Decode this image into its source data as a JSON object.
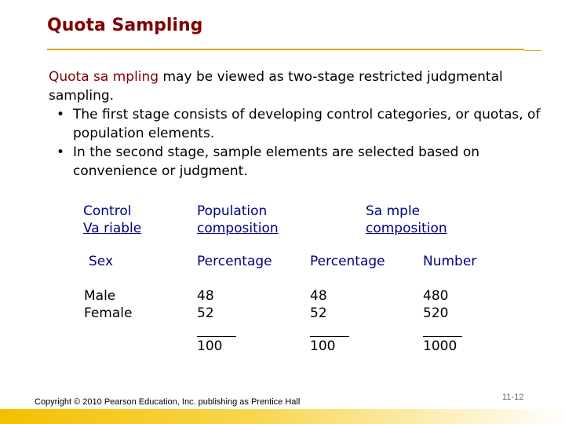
{
  "slide": {
    "title": "Quota Sampling",
    "intro_term": "Quota sa mpling",
    "intro_rest": " may be viewed as two-stage restricted judgmental sampling.",
    "bullets": [
      "The first stage consists of developing control categories, or quotas, of population elements.",
      "In the second stage, sample elements are selected based on convenience or judgment."
    ],
    "bullet_glyph": "•"
  },
  "table": {
    "headers": {
      "control_variable": [
        "Control",
        "Va riable"
      ],
      "population": [
        "Population",
        "composition"
      ],
      "sample": [
        "Sa mple",
        "composition"
      ]
    },
    "subheaders": {
      "variable": "Sex",
      "population_pct": "Percentage",
      "sample_pct": "Percentage",
      "sample_num": "Number"
    },
    "rows": {
      "labels": [
        "Male",
        "Female"
      ],
      "population_pct": [
        "48",
        "52"
      ],
      "sample_pct": [
        "48",
        "52"
      ],
      "sample_num": [
        "480",
        "520"
      ]
    },
    "totals": {
      "population_pct": "100",
      "sample_pct": "100",
      "sample_num": "1000"
    }
  },
  "footer": {
    "copyright": "Copyright © 2010 Pearson Education, Inc. publishing as Prentice Hall",
    "page_number": "11-12"
  },
  "colors": {
    "title": "#800000",
    "header_text": "#000080",
    "rule": "#e0a800",
    "footer_bar": "#f3c000"
  }
}
